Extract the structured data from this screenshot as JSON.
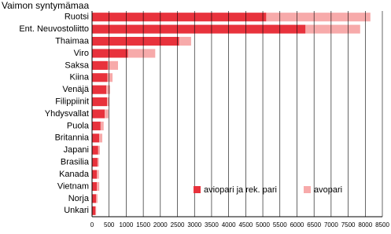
{
  "chart_data": {
    "type": "stacked-barh",
    "title": "Vaimon syntymämaa",
    "categories": [
      "Ruotsi",
      "Ent. Neuvostoliitto",
      "Thaimaa",
      "Viro",
      "Saksa",
      "Kiina",
      "Venäjä",
      "Filippiinit",
      "Yhdysvallat",
      "Puola",
      "Britannia",
      "Japani",
      "Brasilia",
      "Kanada",
      "Vietnam",
      "Norja",
      "Unkari"
    ],
    "series": [
      {
        "name": "aviopari ja rek. pari",
        "color": "#e8323c",
        "values": [
          5100,
          6250,
          2550,
          1050,
          460,
          450,
          420,
          440,
          370,
          250,
          210,
          180,
          160,
          140,
          140,
          120,
          100
        ]
      },
      {
        "name": "avopari",
        "color": "#f7aaaa",
        "values": [
          3050,
          1600,
          350,
          800,
          300,
          150,
          110,
          60,
          110,
          90,
          90,
          50,
          40,
          60,
          70,
          40,
          20
        ]
      }
    ],
    "xlim": [
      0,
      8500
    ],
    "xticks": [
      0,
      500,
      1000,
      1500,
      2000,
      2500,
      3000,
      3500,
      4000,
      4500,
      5000,
      5500,
      6000,
      6500,
      7000,
      7500,
      8000,
      8500
    ],
    "grid": true
  }
}
